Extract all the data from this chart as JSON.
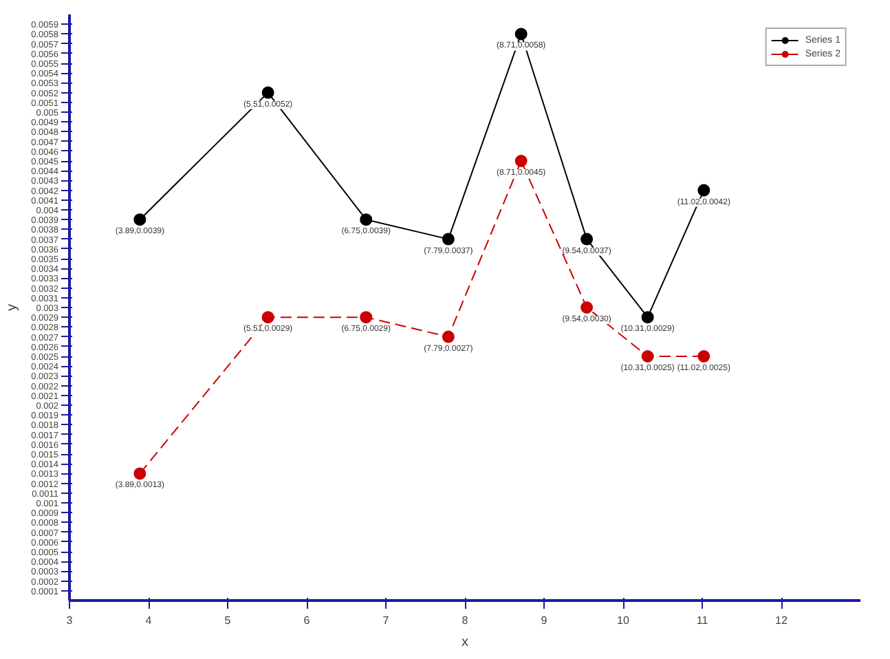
{
  "chart_data": {
    "type": "line",
    "xlabel": "x",
    "ylabel": "y",
    "xlim": [
      3,
      13
    ],
    "xticks": [
      3,
      4,
      5,
      6,
      7,
      8,
      9,
      10,
      11,
      12
    ],
    "ylim": [
      0,
      0.006
    ],
    "yticks": [
      0.0001,
      0.0002,
      0.0003,
      0.0004,
      0.0005,
      0.0006,
      0.0007,
      0.0008,
      0.0009,
      0.001,
      0.0011,
      0.0012,
      0.0013,
      0.0014,
      0.0015,
      0.0016,
      0.0017,
      0.0018,
      0.0019,
      0.002,
      0.0021,
      0.0022,
      0.0023,
      0.0024,
      0.0025,
      0.0026,
      0.0027,
      0.0028,
      0.0029,
      0.003,
      0.0031,
      0.0032,
      0.0033,
      0.0034,
      0.0035,
      0.0036,
      0.0037,
      0.0038,
      0.0039,
      0.004,
      0.0041,
      0.0042,
      0.0043,
      0.0044,
      0.0045,
      0.0046,
      0.0047,
      0.0048,
      0.0049,
      0.005,
      0.0051,
      0.0052,
      0.0053,
      0.0054,
      0.0055,
      0.0056,
      0.0057,
      0.0058,
      0.0059
    ],
    "grid": false,
    "legend": "top right",
    "marker": "circle",
    "series": [
      {
        "name": "Series 1",
        "color": "#000000",
        "line_style": "solid",
        "x": [
          3.89,
          5.51,
          6.75,
          7.79,
          8.71,
          9.54,
          10.31,
          11.02
        ],
        "values": [
          0.0039,
          0.0052,
          0.0039,
          0.0037,
          0.0058,
          0.0037,
          0.0029,
          0.0042
        ],
        "value_labels": [
          "(3.89,0.0039)",
          "(5.51,0.0052)",
          "(6.75,0.0039)",
          "(7.79,0.0037)",
          "(8.71,0.0058)",
          "(9.54,0.0037)",
          "(10.31,0.0029)",
          "(11.02,0.0042)"
        ]
      },
      {
        "name": "Series 2",
        "color": "#cc0000",
        "line_style": "dashed",
        "x": [
          3.89,
          5.51,
          6.75,
          7.79,
          8.71,
          9.54,
          10.31,
          11.02
        ],
        "values": [
          0.0013,
          0.0029,
          0.0029,
          0.0027,
          0.0045,
          0.003,
          0.0025,
          0.0025
        ],
        "value_labels": [
          "(3.89,0.0013)",
          "(5.51,0.0029)",
          "(6.75,0.0029)",
          "(7.79,0.0027)",
          "(8.71,0.0045)",
          "(9.54,0.0030)",
          "(10.31,0.0025)",
          "(11.02,0.0025)"
        ]
      }
    ]
  }
}
